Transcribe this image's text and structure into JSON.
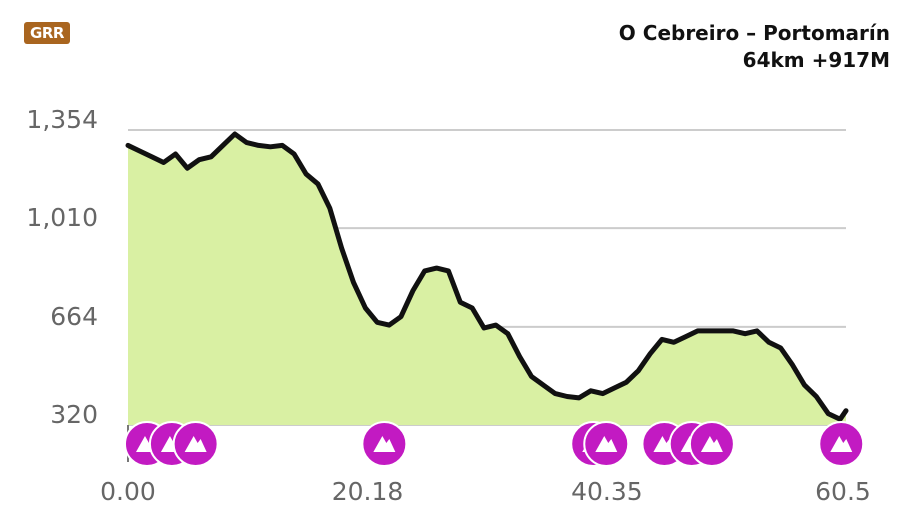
{
  "logo": {
    "text": "GRR"
  },
  "header": {
    "title": "O Cebreiro – Portomarín",
    "subtitle": "64km +917M"
  },
  "chart_data": {
    "type": "area",
    "title": "O Cebreiro – Portomarín",
    "subtitle": "64km +917M",
    "xlabel": "",
    "ylabel": "",
    "xlim": [
      0,
      60.5
    ],
    "ylim": [
      320,
      1354
    ],
    "x_ticks": [
      "0.00",
      "20.18",
      "40.35",
      "60.5"
    ],
    "y_ticks": [
      "1,354",
      "1,010",
      "664",
      "320"
    ],
    "grid": true,
    "colors": {
      "fill": "#d9f0a3",
      "line": "#111111",
      "grid": "#cccccc",
      "marker": "#c21ac2"
    },
    "series": [
      {
        "x": [
          0,
          1,
          2,
          3,
          4,
          5,
          6,
          7,
          8,
          9,
          10,
          11,
          12,
          13,
          14,
          15,
          16,
          17,
          18,
          19,
          20,
          21,
          22,
          23,
          24,
          25,
          26,
          27,
          28,
          29,
          30,
          31,
          32,
          33,
          34,
          35,
          36,
          37,
          38,
          39,
          40,
          41,
          42,
          43,
          44,
          45,
          46,
          47,
          48,
          49,
          50,
          51,
          52,
          53,
          54,
          55,
          56,
          57,
          58,
          59,
          60,
          60.5
        ],
        "y": [
          1300,
          1280,
          1260,
          1240,
          1270,
          1220,
          1250,
          1260,
          1300,
          1340,
          1310,
          1300,
          1295,
          1300,
          1270,
          1200,
          1165,
          1080,
          940,
          820,
          730,
          680,
          670,
          700,
          790,
          860,
          870,
          860,
          750,
          730,
          660,
          670,
          640,
          560,
          490,
          460,
          430,
          420,
          415,
          440,
          430,
          450,
          470,
          510,
          570,
          620,
          610,
          630,
          650,
          650,
          650,
          650,
          640,
          650,
          610,
          590,
          530,
          460,
          420,
          360,
          340,
          370
        ]
      }
    ],
    "markers_x": [
      1.6,
      3.7,
      5.7,
      21.6,
      39.2,
      40.3,
      45.2,
      47.5,
      49.2,
      60.1
    ]
  }
}
